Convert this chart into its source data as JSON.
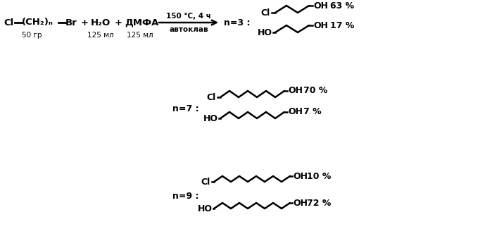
{
  "bg_color": "#ffffff",
  "fig_width": 6.99,
  "fig_height": 3.52,
  "dpi": 100,
  "arrow_label_top": "150 °C, 4 ч",
  "arrow_label_bot": "автоклав",
  "reactant_text": "Cl—(CH₂)ₙ—Br",
  "plus1": "+",
  "water": "H₂O",
  "plus2": "+",
  "dmfa": "ДМФА",
  "amount1": "50 гр",
  "amount2": "125 мл",
  "amount3": "125 мл",
  "n3_label": "n=3 :",
  "n7_label": "n=7 :",
  "n9_label": "n=9 :",
  "pct_63": "63 %",
  "pct_17": "17 %",
  "pct_70": "70 %",
  "pct_7": "7 %",
  "pct_10": "10 %",
  "pct_72": "72 %"
}
